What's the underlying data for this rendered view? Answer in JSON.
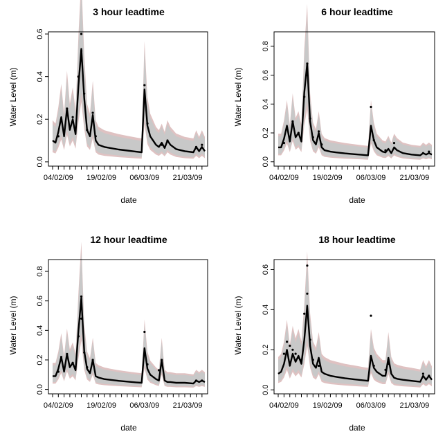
{
  "chart_data": [
    {
      "type": "line",
      "title": "3 hour leadtime",
      "xlabel": "date",
      "ylabel": "Water Level  (m)",
      "x_tick_labels": [
        "04/02/09",
        "19/02/09",
        "06/03/09",
        "21/03/09"
      ],
      "y_tick_labels": [
        "0.0",
        "0.2",
        "0.4",
        "0.6"
      ],
      "ylim": [
        -0.02,
        0.61
      ],
      "band_color": "#c8c8c8",
      "band_edge_color": "#c58f8f",
      "series": [
        {
          "values": [
            [
              "02/02/09",
              0.1
            ],
            [
              "03/02/09",
              0.09
            ],
            [
              "04/02/09",
              0.14
            ],
            [
              "05/02/09",
              0.21
            ],
            [
              "06/02/09",
              0.12
            ],
            [
              "07/02/09",
              0.25
            ],
            [
              "08/02/09",
              0.15
            ],
            [
              "09/02/09",
              0.2
            ],
            [
              "10/02/09",
              0.13
            ],
            [
              "11/02/09",
              0.36
            ],
            [
              "12/02/09",
              0.53
            ],
            [
              "13/02/09",
              0.3
            ],
            [
              "14/02/09",
              0.15
            ],
            [
              "15/02/09",
              0.12
            ],
            [
              "16/02/09",
              0.22
            ],
            [
              "17/02/09",
              0.1
            ],
            [
              "18/02/09",
              0.08
            ],
            [
              "20/02/09",
              0.07
            ],
            [
              "22/02/09",
              0.065
            ],
            [
              "25/02/09",
              0.058
            ],
            [
              "28/02/09",
              0.053
            ],
            [
              "03/03/09",
              0.048
            ],
            [
              "05/03/09",
              0.045
            ],
            [
              "06/03/09",
              0.34
            ],
            [
              "07/03/09",
              0.17
            ],
            [
              "08/03/09",
              0.12
            ],
            [
              "10/03/09",
              0.08
            ],
            [
              "11/03/09",
              0.07
            ],
            [
              "12/03/09",
              0.09
            ],
            [
              "13/03/09",
              0.065
            ],
            [
              "14/03/09",
              0.1
            ],
            [
              "15/03/09",
              0.08
            ],
            [
              "17/03/09",
              0.06
            ],
            [
              "20/03/09",
              0.05
            ],
            [
              "23/03/09",
              0.045
            ],
            [
              "24/03/09",
              0.07
            ],
            [
              "25/03/09",
              0.05
            ],
            [
              "26/03/09",
              0.07
            ],
            [
              "27/03/09",
              0.05
            ]
          ]
        }
      ],
      "points": [
        [
          "04/02/09",
          0.12
        ],
        [
          "05/02/09",
          0.2
        ],
        [
          "07/02/09",
          0.25
        ],
        [
          "09/02/09",
          0.21
        ],
        [
          "11/02/09",
          0.4
        ],
        [
          "12/02/09",
          0.6
        ],
        [
          "12/02/09",
          0.52
        ],
        [
          "13/02/09",
          0.32
        ],
        [
          "14/02/09",
          0.15
        ],
        [
          "16/02/09",
          0.23
        ],
        [
          "17/02/09",
          0.12
        ],
        [
          "06/03/09",
          0.36
        ],
        [
          "07/03/09",
          0.18
        ],
        [
          "12/03/09",
          0.08
        ],
        [
          "14/03/09",
          0.1
        ],
        [
          "24/03/09",
          0.07
        ],
        [
          "26/03/09",
          0.08
        ]
      ]
    },
    {
      "type": "line",
      "title": "6 hour leadtime",
      "xlabel": "date",
      "ylabel": "Water Level  (m)",
      "x_tick_labels": [
        "04/02/09",
        "19/02/09",
        "06/03/09",
        "21/03/09"
      ],
      "y_tick_labels": [
        "0.0",
        "0.2",
        "0.4",
        "0.6",
        "0.8"
      ],
      "ylim": [
        -0.03,
        0.9
      ],
      "band_color": "#c8c8c8",
      "band_edge_color": "#c58f8f",
      "series": [
        {
          "values": [
            [
              "02/02/09",
              0.1
            ],
            [
              "03/02/09",
              0.1
            ],
            [
              "04/02/09",
              0.16
            ],
            [
              "05/02/09",
              0.25
            ],
            [
              "06/02/09",
              0.14
            ],
            [
              "07/02/09",
              0.28
            ],
            [
              "08/02/09",
              0.17
            ],
            [
              "09/02/09",
              0.2
            ],
            [
              "10/02/09",
              0.14
            ],
            [
              "11/02/09",
              0.48
            ],
            [
              "12/02/09",
              0.68
            ],
            [
              "13/02/09",
              0.28
            ],
            [
              "14/02/09",
              0.15
            ],
            [
              "15/02/09",
              0.12
            ],
            [
              "16/02/09",
              0.2
            ],
            [
              "17/02/09",
              0.1
            ],
            [
              "18/02/09",
              0.08
            ],
            [
              "20/02/09",
              0.07
            ],
            [
              "22/02/09",
              0.065
            ],
            [
              "25/02/09",
              0.058
            ],
            [
              "28/02/09",
              0.053
            ],
            [
              "03/03/09",
              0.048
            ],
            [
              "05/03/09",
              0.045
            ],
            [
              "06/03/09",
              0.25
            ],
            [
              "07/03/09",
              0.15
            ],
            [
              "08/03/09",
              0.1
            ],
            [
              "10/03/09",
              0.07
            ],
            [
              "11/03/09",
              0.065
            ],
            [
              "12/03/09",
              0.09
            ],
            [
              "13/03/09",
              0.06
            ],
            [
              "14/03/09",
              0.1
            ],
            [
              "15/03/09",
              0.08
            ],
            [
              "17/03/09",
              0.06
            ],
            [
              "20/03/09",
              0.05
            ],
            [
              "23/03/09",
              0.045
            ],
            [
              "24/03/09",
              0.06
            ],
            [
              "25/03/09",
              0.05
            ],
            [
              "26/03/09",
              0.06
            ],
            [
              "27/03/09",
              0.05
            ]
          ]
        }
      ],
      "points": [
        [
          "04/02/09",
          0.13
        ],
        [
          "05/02/09",
          0.24
        ],
        [
          "07/02/09",
          0.28
        ],
        [
          "09/02/09",
          0.2
        ],
        [
          "11/02/09",
          0.45
        ],
        [
          "12/02/09",
          0.68
        ],
        [
          "12/02/09",
          0.6
        ],
        [
          "13/02/09",
          0.3
        ],
        [
          "14/02/09",
          0.17
        ],
        [
          "16/02/09",
          0.21
        ],
        [
          "17/02/09",
          0.12
        ],
        [
          "06/03/09",
          0.38
        ],
        [
          "07/03/09",
          0.15
        ],
        [
          "11/03/09",
          0.08
        ],
        [
          "14/03/09",
          0.13
        ],
        [
          "24/03/09",
          0.06
        ],
        [
          "26/03/09",
          0.07
        ]
      ]
    },
    {
      "type": "line",
      "title": "12 hour leadtime",
      "xlabel": "date",
      "ylabel": "Water Level  (m)",
      "x_tick_labels": [
        "04/02/09",
        "19/02/09",
        "06/03/09",
        "21/03/09"
      ],
      "y_tick_labels": [
        "0.0",
        "0.2",
        "0.4",
        "0.6",
        "0.8"
      ],
      "ylim": [
        -0.03,
        0.88
      ],
      "band_color": "#c8c8c8",
      "band_edge_color": "#c58f8f",
      "series": [
        {
          "values": [
            [
              "02/02/09",
              0.09
            ],
            [
              "03/02/09",
              0.09
            ],
            [
              "04/02/09",
              0.14
            ],
            [
              "05/02/09",
              0.22
            ],
            [
              "06/02/09",
              0.12
            ],
            [
              "07/02/09",
              0.24
            ],
            [
              "08/02/09",
              0.15
            ],
            [
              "09/02/09",
              0.18
            ],
            [
              "10/02/09",
              0.13
            ],
            [
              "11/02/09",
              0.4
            ],
            [
              "12/02/09",
              0.62
            ],
            [
              "13/02/09",
              0.26
            ],
            [
              "14/02/09",
              0.14
            ],
            [
              "15/02/09",
              0.11
            ],
            [
              "16/02/09",
              0.2
            ],
            [
              "17/02/09",
              0.09
            ],
            [
              "18/02/09",
              0.08
            ],
            [
              "20/02/09",
              0.07
            ],
            [
              "22/02/09",
              0.065
            ],
            [
              "25/02/09",
              0.058
            ],
            [
              "28/02/09",
              0.053
            ],
            [
              "03/03/09",
              0.048
            ],
            [
              "05/03/09",
              0.045
            ],
            [
              "06/03/09",
              0.28
            ],
            [
              "07/03/09",
              0.14
            ],
            [
              "08/03/09",
              0.1
            ],
            [
              "10/03/09",
              0.07
            ],
            [
              "11/03/09",
              0.06
            ],
            [
              "12/03/09",
              0.2
            ],
            [
              "13/03/09",
              0.06
            ],
            [
              "14/03/09",
              0.05
            ],
            [
              "15/03/09",
              0.05
            ],
            [
              "17/03/09",
              0.045
            ],
            [
              "20/03/09",
              0.045
            ],
            [
              "23/03/09",
              0.04
            ],
            [
              "24/03/09",
              0.06
            ],
            [
              "25/03/09",
              0.05
            ],
            [
              "26/03/09",
              0.06
            ],
            [
              "27/03/09",
              0.05
            ]
          ]
        }
      ],
      "points": [
        [
          "04/02/09",
          0.12
        ],
        [
          "05/02/09",
          0.22
        ],
        [
          "07/02/09",
          0.24
        ],
        [
          "09/02/09",
          0.18
        ],
        [
          "11/02/09",
          0.36
        ],
        [
          "12/02/09",
          0.63
        ],
        [
          "12/02/09",
          0.48
        ],
        [
          "13/02/09",
          0.25
        ],
        [
          "14/02/09",
          0.15
        ],
        [
          "16/02/09",
          0.2
        ],
        [
          "06/03/09",
          0.39
        ],
        [
          "07/03/09",
          0.17
        ],
        [
          "11/03/09",
          0.13
        ],
        [
          "12/03/09",
          0.2
        ],
        [
          "24/03/09",
          0.06
        ],
        [
          "26/03/09",
          0.06
        ]
      ]
    },
    {
      "type": "line",
      "title": "18 hour leadtime",
      "xlabel": "date",
      "ylabel": "Water Level  (m)",
      "x_tick_labels": [
        "04/02/09",
        "19/02/09",
        "06/03/09",
        "21/03/09"
      ],
      "y_tick_labels": [
        "0.0",
        "0.2",
        "0.4",
        "0.6"
      ],
      "ylim": [
        -0.02,
        0.65
      ],
      "band_color": "#c8c8c8",
      "band_edge_color": "#c58f8f",
      "series": [
        {
          "values": [
            [
              "02/02/09",
              0.08
            ],
            [
              "03/02/09",
              0.09
            ],
            [
              "04/02/09",
              0.13
            ],
            [
              "05/02/09",
              0.2
            ],
            [
              "06/02/09",
              0.12
            ],
            [
              "07/02/09",
              0.18
            ],
            [
              "08/02/09",
              0.14
            ],
            [
              "09/02/09",
              0.17
            ],
            [
              "10/02/09",
              0.13
            ],
            [
              "11/02/09",
              0.25
            ],
            [
              "12/02/09",
              0.42
            ],
            [
              "13/02/09",
              0.22
            ],
            [
              "14/02/09",
              0.13
            ],
            [
              "15/02/09",
              0.11
            ],
            [
              "16/02/09",
              0.16
            ],
            [
              "17/02/09",
              0.09
            ],
            [
              "18/02/09",
              0.08
            ],
            [
              "20/02/09",
              0.07
            ],
            [
              "22/02/09",
              0.065
            ],
            [
              "25/02/09",
              0.058
            ],
            [
              "28/02/09",
              0.053
            ],
            [
              "03/03/09",
              0.048
            ],
            [
              "05/03/09",
              0.045
            ],
            [
              "06/03/09",
              0.17
            ],
            [
              "07/03/09",
              0.11
            ],
            [
              "08/03/09",
              0.09
            ],
            [
              "10/03/09",
              0.07
            ],
            [
              "11/03/09",
              0.07
            ],
            [
              "12/03/09",
              0.16
            ],
            [
              "13/03/09",
              0.08
            ],
            [
              "14/03/09",
              0.06
            ],
            [
              "15/03/09",
              0.055
            ],
            [
              "17/03/09",
              0.05
            ],
            [
              "20/03/09",
              0.045
            ],
            [
              "23/03/09",
              0.04
            ],
            [
              "24/03/09",
              0.07
            ],
            [
              "25/03/09",
              0.05
            ],
            [
              "26/03/09",
              0.07
            ],
            [
              "27/03/09",
              0.05
            ]
          ]
        }
      ],
      "points": [
        [
          "04/02/09",
          0.18
        ],
        [
          "05/02/09",
          0.24
        ],
        [
          "06/02/09",
          0.22
        ],
        [
          "07/02/09",
          0.2
        ],
        [
          "08/02/09",
          0.18
        ],
        [
          "09/02/09",
          0.16
        ],
        [
          "10/02/09",
          0.15
        ],
        [
          "11/02/09",
          0.38
        ],
        [
          "12/02/09",
          0.62
        ],
        [
          "12/02/09",
          0.48
        ],
        [
          "13/02/09",
          0.25
        ],
        [
          "14/02/09",
          0.15
        ],
        [
          "16/02/09",
          0.12
        ],
        [
          "06/03/09",
          0.37
        ],
        [
          "07/03/09",
          0.12
        ],
        [
          "11/03/09",
          0.1
        ],
        [
          "12/03/09",
          0.13
        ],
        [
          "24/03/09",
          0.08
        ],
        [
          "26/03/09",
          0.07
        ]
      ]
    }
  ]
}
